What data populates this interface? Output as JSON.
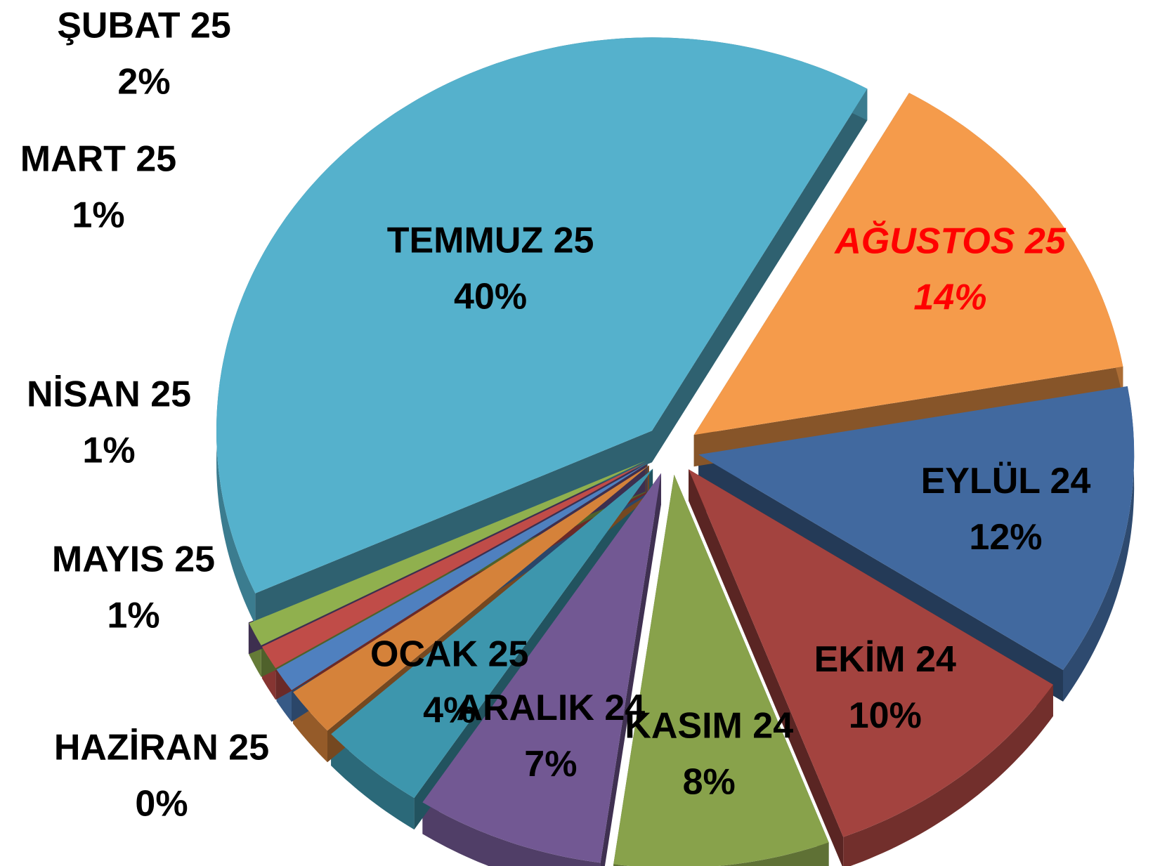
{
  "chart_data": {
    "type": "pie3d",
    "categories": [
      "EYLÜL 24",
      "EKİM 24",
      "KASIM 24",
      "ARALIK 24",
      "OCAK 25",
      "ŞUBAT 25",
      "MART 25",
      "NİSAN 25",
      "MAYIS 25",
      "HAZİRAN 25",
      "TEMMUZ 25",
      "AĞUSTOS 25"
    ],
    "values": [
      12,
      10,
      8,
      7,
      4,
      2,
      1,
      1,
      1,
      0,
      40,
      14
    ],
    "value_labels": [
      "12%",
      "10%",
      "8%",
      "7%",
      "4%",
      "2%",
      "1%",
      "1%",
      "1%",
      "0%",
      "40%",
      "14%"
    ],
    "colors": [
      "#41699f",
      "#a3433f",
      "#88a24b",
      "#725893",
      "#3d96ad",
      "#d5823a",
      "#4f80bf",
      "#c04c48",
      "#90b04e",
      "#6e5690",
      "#55b1cc",
      "#f59b4b"
    ],
    "label_colors": [
      "#000000",
      "#000000",
      "#000000",
      "#000000",
      "#000000",
      "#000000",
      "#000000",
      "#000000",
      "#000000",
      "#000000",
      "#000000",
      "#ff0000"
    ]
  }
}
